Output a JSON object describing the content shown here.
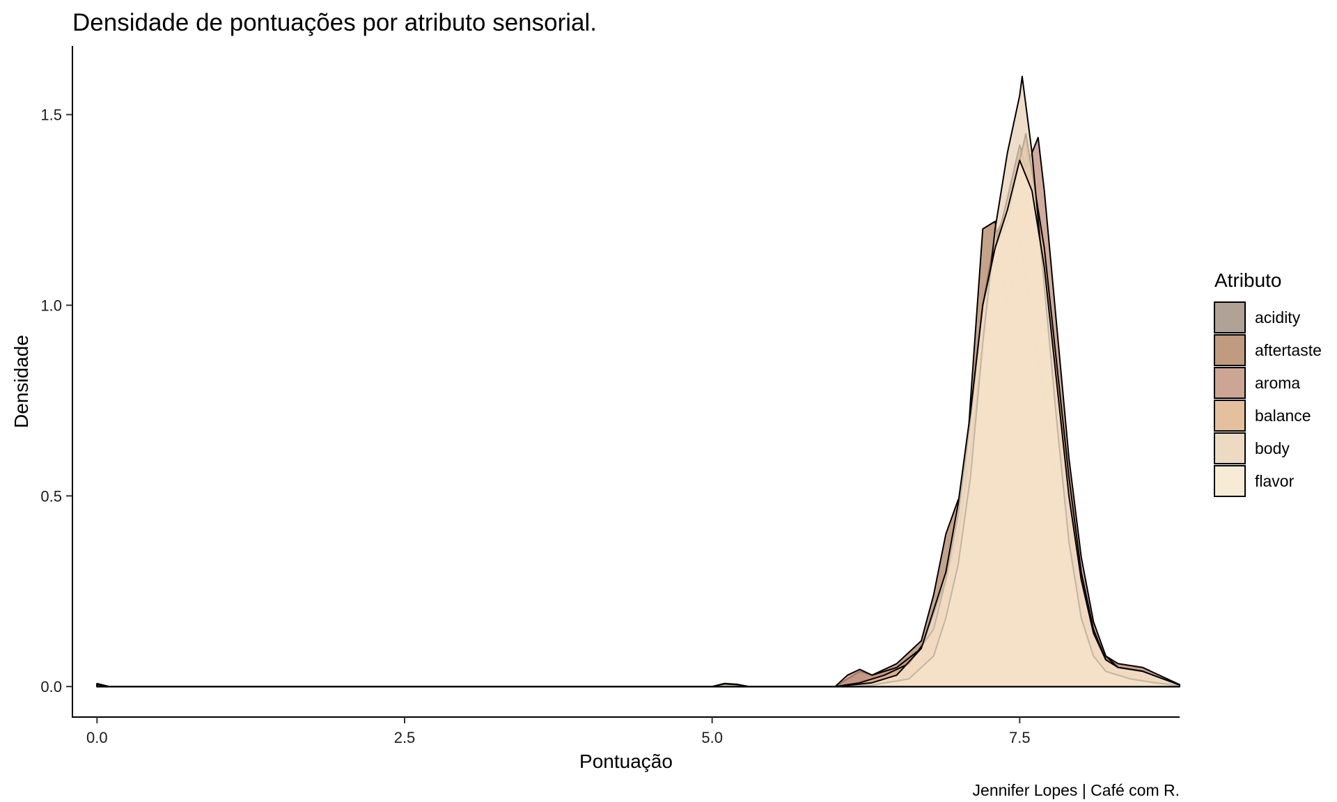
{
  "chart_data": {
    "type": "area",
    "title": "Densidade de pontuações por atributo sensorial.",
    "xlabel": "Pontuação",
    "ylabel": "Densidade",
    "caption": "Jennifer Lopes | Café com R.",
    "xlim": [
      -0.2,
      8.8
    ],
    "ylim": [
      -0.08,
      1.68
    ],
    "x_ticks": [
      0,
      2.5,
      5,
      7.5
    ],
    "x_tick_labels": [
      "0.0",
      "2.5",
      "5.0",
      "7.5"
    ],
    "y_ticks": [
      0,
      0.5,
      1.0,
      1.5
    ],
    "y_tick_labels": [
      "0.0",
      "0.5",
      "1.0",
      "1.5"
    ],
    "grid": false,
    "legend_title": "Atributo",
    "legend_position": "right",
    "series": [
      {
        "name": "acidity",
        "color": "#a39285",
        "x": [
          0,
          0.1,
          0.2,
          5.0,
          5.1,
          5.2,
          5.3,
          6.0,
          6.3,
          6.5,
          6.7,
          6.9,
          7.0,
          7.1,
          7.2,
          7.3,
          7.4,
          7.5,
          7.55,
          7.6,
          7.7,
          7.8,
          7.9,
          8.0,
          8.1,
          8.2,
          8.3,
          8.5,
          8.8
        ],
        "y": [
          0.005,
          0.0,
          0.0,
          0.0,
          0.006,
          0.004,
          0.0,
          0.0,
          0.008,
          0.02,
          0.08,
          0.3,
          0.45,
          0.72,
          1.0,
          1.18,
          1.25,
          1.4,
          1.43,
          1.3,
          1.05,
          0.8,
          0.5,
          0.3,
          0.14,
          0.06,
          0.04,
          0.02,
          0.004
        ]
      },
      {
        "name": "aftertaste",
        "color": "#b5896a",
        "x": [
          0,
          0.1,
          0.2,
          5.0,
          5.1,
          5.2,
          5.3,
          6.0,
          6.1,
          6.2,
          6.3,
          6.5,
          6.7,
          6.8,
          6.9,
          7.0,
          7.05,
          7.1,
          7.2,
          7.3,
          7.4,
          7.5,
          7.6,
          7.7,
          7.8,
          7.9,
          8.0,
          8.1,
          8.2,
          8.3,
          8.5,
          8.8
        ],
        "y": [
          0.008,
          0.0,
          0.0,
          0.0,
          0.008,
          0.006,
          0.0,
          0.0,
          0.02,
          0.04,
          0.03,
          0.06,
          0.12,
          0.24,
          0.4,
          0.49,
          0.5,
          0.75,
          1.2,
          1.22,
          1.0,
          1.18,
          0.95,
          0.75,
          0.55,
          0.38,
          0.22,
          0.12,
          0.08,
          0.06,
          0.05,
          0.005
        ]
      },
      {
        "name": "aroma",
        "color": "#c49581",
        "x": [
          0,
          0.1,
          0.2,
          5.0,
          5.1,
          5.2,
          5.3,
          6.0,
          6.1,
          6.2,
          6.3,
          6.5,
          6.7,
          6.9,
          7.0,
          7.1,
          7.2,
          7.3,
          7.4,
          7.5,
          7.55,
          7.6,
          7.65,
          7.7,
          7.8,
          7.9,
          8.0,
          8.1,
          8.2,
          8.3,
          8.5,
          8.8
        ],
        "y": [
          0.004,
          0.0,
          0.0,
          0.0,
          0.008,
          0.005,
          0.0,
          0.0,
          0.03,
          0.045,
          0.03,
          0.05,
          0.1,
          0.28,
          0.4,
          0.62,
          0.9,
          1.15,
          1.28,
          1.42,
          1.36,
          1.4,
          1.44,
          1.3,
          0.95,
          0.6,
          0.34,
          0.17,
          0.08,
          0.05,
          0.04,
          0.004
        ]
      },
      {
        "name": "balance",
        "color": "#dfb58e",
        "x": [
          0,
          0.1,
          0.2,
          5.0,
          5.1,
          5.2,
          5.3,
          6.0,
          6.2,
          6.4,
          6.6,
          6.8,
          6.9,
          7.0,
          7.1,
          7.2,
          7.3,
          7.4,
          7.5,
          7.55,
          7.6,
          7.7,
          7.8,
          7.9,
          8.0,
          8.1,
          8.2,
          8.3,
          8.5,
          8.8
        ],
        "y": [
          0.005,
          0.0,
          0.0,
          0.0,
          0.006,
          0.004,
          0.0,
          0.0,
          0.01,
          0.03,
          0.06,
          0.15,
          0.28,
          0.45,
          0.7,
          1.0,
          1.15,
          1.22,
          1.38,
          1.45,
          1.35,
          1.15,
          0.85,
          0.55,
          0.3,
          0.15,
          0.07,
          0.05,
          0.04,
          0.004
        ]
      },
      {
        "name": "body",
        "color": "#e9d3b8",
        "x": [
          0,
          0.1,
          0.2,
          5.0,
          5.1,
          5.2,
          5.3,
          6.0,
          6.3,
          6.6,
          6.8,
          6.9,
          7.0,
          7.1,
          7.2,
          7.3,
          7.4,
          7.5,
          7.52,
          7.6,
          7.7,
          7.8,
          7.9,
          8.0,
          8.1,
          8.2,
          8.4,
          8.6,
          8.8
        ],
        "y": [
          0.004,
          0.0,
          0.0,
          0.0,
          0.005,
          0.003,
          0.0,
          0.0,
          0.004,
          0.02,
          0.08,
          0.18,
          0.32,
          0.55,
          0.9,
          1.2,
          1.4,
          1.55,
          1.6,
          1.4,
          1.05,
          0.7,
          0.38,
          0.18,
          0.08,
          0.04,
          0.02,
          0.01,
          0.002
        ]
      },
      {
        "name": "flavor",
        "color": "#f7e7cf",
        "x": [
          0,
          0.1,
          0.2,
          5.0,
          5.1,
          5.2,
          5.3,
          6.0,
          6.3,
          6.5,
          6.7,
          6.9,
          7.0,
          7.1,
          7.2,
          7.3,
          7.4,
          7.5,
          7.6,
          7.7,
          7.8,
          7.9,
          8.0,
          8.1,
          8.2,
          8.3,
          8.5,
          8.8
        ],
        "y": [
          0.005,
          0.0,
          0.0,
          0.0,
          0.007,
          0.005,
          0.0,
          0.0,
          0.01,
          0.03,
          0.1,
          0.3,
          0.48,
          0.72,
          1.0,
          1.15,
          1.25,
          1.38,
          1.3,
          1.1,
          0.8,
          0.5,
          0.28,
          0.14,
          0.07,
          0.05,
          0.04,
          0.004
        ]
      }
    ]
  }
}
